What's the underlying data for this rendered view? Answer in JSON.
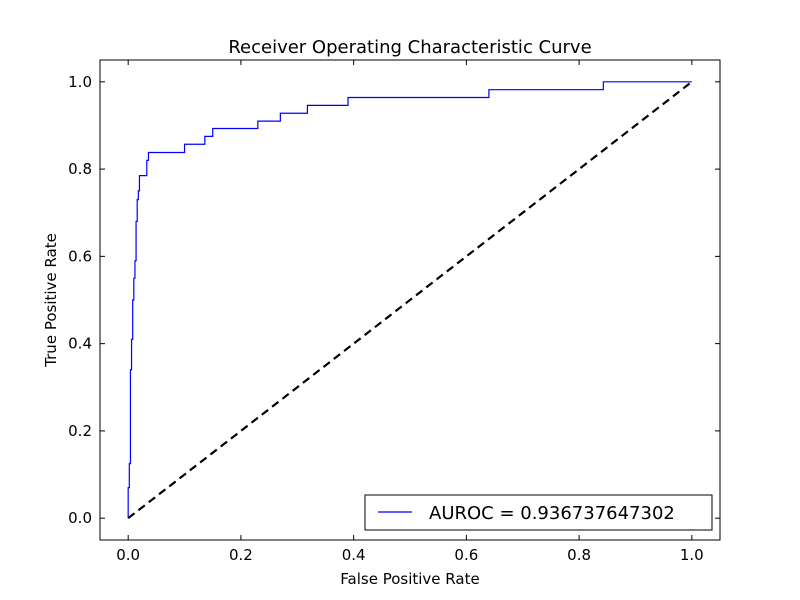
{
  "chart_data": {
    "type": "line",
    "title": "Receiver Operating Characteristic Curve",
    "xlabel": "False Positive Rate",
    "ylabel": "True Positive Rate",
    "xlim": [
      -0.05,
      1.05
    ],
    "ylim": [
      -0.05,
      1.05
    ],
    "grid": false,
    "legend_position": "bottom-right",
    "xticks": [
      0.0,
      0.2,
      0.4,
      0.6,
      0.8,
      1.0
    ],
    "yticks": [
      0.0,
      0.2,
      0.4,
      0.6,
      0.8,
      1.0
    ],
    "xtick_labels": [
      "0.0",
      "0.2",
      "0.4",
      "0.6",
      "0.8",
      "1.0"
    ],
    "ytick_labels": [
      "0.0",
      "0.2",
      "0.4",
      "0.6",
      "0.8",
      "1.0"
    ],
    "series": [
      {
        "name": "AUROC = 0.936737647302",
        "color": "#0000ff",
        "style": "solid",
        "x": [
          0.0,
          0.0,
          0.002,
          0.002,
          0.004,
          0.004,
          0.006,
          0.006,
          0.008,
          0.008,
          0.01,
          0.01,
          0.012,
          0.012,
          0.014,
          0.014,
          0.016,
          0.016,
          0.018,
          0.018,
          0.02,
          0.02,
          0.024,
          0.024,
          0.033,
          0.033,
          0.036,
          0.036,
          0.1,
          0.1,
          0.136,
          0.136,
          0.15,
          0.15,
          0.23,
          0.23,
          0.27,
          0.27,
          0.318,
          0.318,
          0.39,
          0.39,
          0.64,
          0.64,
          0.843,
          0.843,
          1.0
        ],
        "y": [
          0.0,
          0.07,
          0.07,
          0.125,
          0.125,
          0.34,
          0.34,
          0.41,
          0.41,
          0.5,
          0.5,
          0.55,
          0.55,
          0.59,
          0.59,
          0.68,
          0.68,
          0.73,
          0.73,
          0.75,
          0.75,
          0.785,
          0.785,
          0.785,
          0.785,
          0.82,
          0.82,
          0.838,
          0.838,
          0.857,
          0.857,
          0.875,
          0.875,
          0.893,
          0.893,
          0.91,
          0.91,
          0.928,
          0.928,
          0.946,
          0.946,
          0.964,
          0.964,
          0.982,
          0.982,
          1.0,
          1.0
        ]
      },
      {
        "name": "",
        "color": "#000000",
        "style": "dashed",
        "x": [
          0.0,
          1.0
        ],
        "y": [
          0.0,
          1.0
        ]
      }
    ]
  }
}
